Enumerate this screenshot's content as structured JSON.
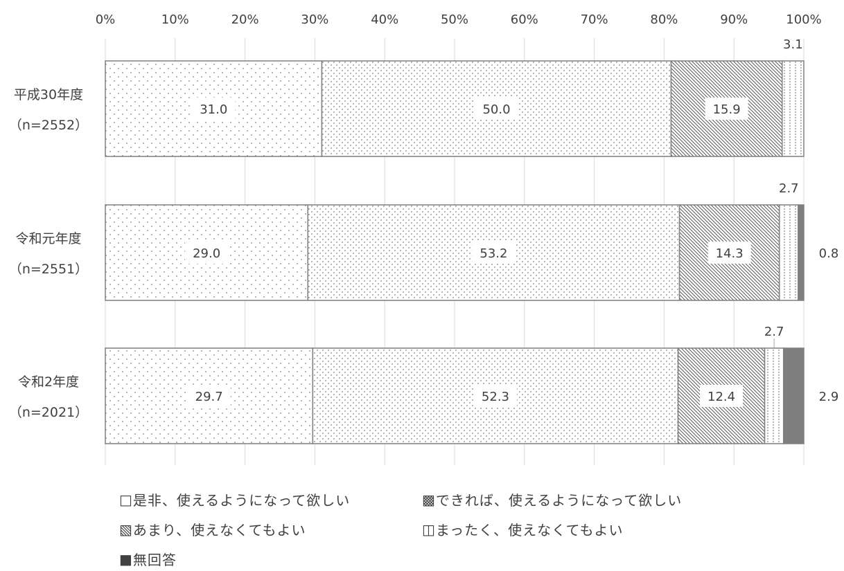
{
  "chart_data": {
    "type": "bar",
    "orientation": "horizontal",
    "stacked": true,
    "xlim": [
      0,
      100
    ],
    "x_ticks": [
      "0%",
      "10%",
      "20%",
      "30%",
      "40%",
      "50%",
      "60%",
      "70%",
      "80%",
      "90%",
      "100%"
    ],
    "grid": true,
    "legend_position": "bottom",
    "categories": [
      {
        "line1": "平成30年度",
        "line2": "（n=2552）"
      },
      {
        "line1": "令和元年度",
        "line2": "（n=2551）"
      },
      {
        "line1": "令和2年度",
        "line2": "（n=2021）"
      }
    ],
    "series": [
      {
        "name": "是非、使えるようになって欲しい",
        "values": [
          31.0,
          29.0,
          29.7
        ],
        "pattern": "sparse-dots"
      },
      {
        "name": "できれば、使えるようになって欲しい",
        "values": [
          50.0,
          53.2,
          52.3
        ],
        "pattern": "dense-dots"
      },
      {
        "name": "あまり、使えなくてもよい",
        "values": [
          15.9,
          14.3,
          12.4
        ],
        "pattern": "diagonal-hatch"
      },
      {
        "name": "まったく、使えなくてもよい",
        "values": [
          3.1,
          2.7,
          2.7
        ],
        "pattern": "vertical-lines"
      },
      {
        "name": "無回答",
        "values": [
          0.0,
          0.8,
          2.9
        ],
        "pattern": "solid"
      }
    ],
    "data_labels": [
      [
        "31.0",
        "50.0",
        "15.9",
        "3.1",
        ""
      ],
      [
        "29.0",
        "53.2",
        "14.3",
        "2.7",
        "0.8"
      ],
      [
        "29.7",
        "52.3",
        "12.4",
        "2.7",
        "2.9"
      ]
    ],
    "legend_markers": [
      "□",
      "▩",
      "▧",
      "◫",
      "■"
    ],
    "colors": {
      "border": "#7f7f7f",
      "grid": "#d9d9d9",
      "dots": "#595959",
      "solid": "#7f7f7f",
      "text": "#404040"
    }
  }
}
